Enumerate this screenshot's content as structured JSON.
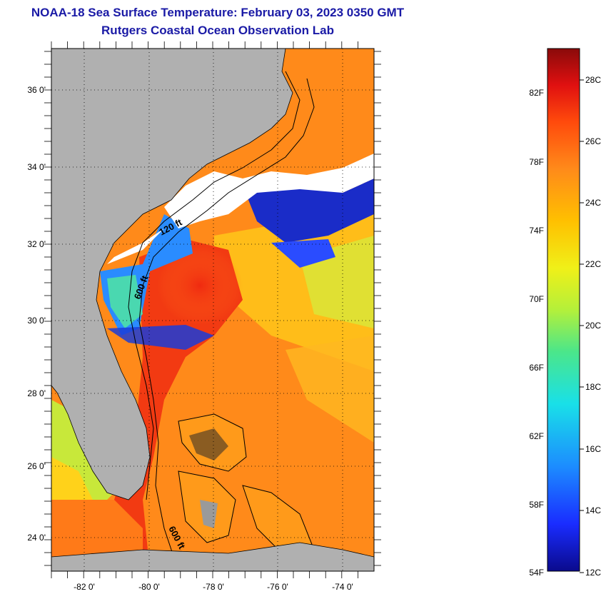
{
  "header": {
    "title": "NOAA-18 Sea Surface Temperature:  February 03, 2023 0350 GMT",
    "subtitle": "Rutgers Coastal Ocean Observation Lab"
  },
  "map": {
    "lat_ticks": [
      "36 0'",
      "34 0'",
      "32 0'",
      "30 0'",
      "28 0'",
      "26 0'",
      "24 0'"
    ],
    "lon_ticks": [
      "-82 0'",
      "-80 0'",
      "-78 0'",
      "-76 0'",
      "-74 0'"
    ],
    "contour_labels": [
      "120 ft",
      "600 ft",
      "600 ft"
    ],
    "colors": {
      "land": "#b0b0b0",
      "cloud": "#ffffff"
    }
  },
  "colorbar": {
    "fahrenheit": [
      "82F",
      "78F",
      "74F",
      "70F",
      "66F",
      "62F",
      "58F",
      "54F"
    ],
    "celsius": [
      "28C",
      "26C",
      "24C",
      "22C",
      "20C",
      "18C",
      "16C",
      "14C",
      "12C"
    ],
    "colors": [
      "#0a0a8c",
      "#1a2cff",
      "#1c8cff",
      "#19e0e8",
      "#4be68a",
      "#b4f03a",
      "#f0f018",
      "#ffc000",
      "#ff8a1a",
      "#ff4a0c",
      "#e01010",
      "#8a0a0a"
    ]
  }
}
